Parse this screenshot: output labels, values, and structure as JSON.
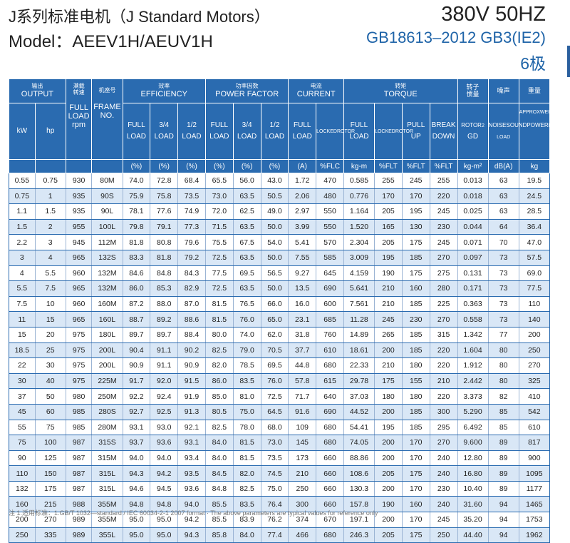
{
  "header": {
    "title_line1": "J系列标准电机（J Standard Motors）",
    "title_line2": "Model：AEEV1H/AEUV1H",
    "voltage": "380V  50HZ",
    "standard": "GB18613–2012 GB3(IE2)",
    "poles": "6极"
  },
  "table": {
    "groups": {
      "output": {
        "zh": "输出",
        "en": "OUTPUT"
      },
      "rated_speed": {
        "zh": "满载",
        "zh2": "转速"
      },
      "frame": {
        "zh": "机座号"
      },
      "efficiency": {
        "zh": "效率",
        "en": "EFFICIENCY"
      },
      "power_factor": {
        "zh": "功率因数",
        "en": "POWER FACTOR"
      },
      "current": {
        "zh": "电流",
        "en": "CURRENT"
      },
      "torque": {
        "zh": "转矩",
        "en": "TORQUE"
      },
      "inertia": {
        "zh": "转子",
        "zh2": "惯量"
      },
      "noise": {
        "zh": "噪声"
      },
      "weight": {
        "zh": "重量"
      }
    },
    "sub": {
      "kw": "kW",
      "hp": "hp",
      "full_load_rpm": [
        "FULL",
        "LOAD",
        "rpm"
      ],
      "frame_no": [
        "FRAME",
        "NO."
      ],
      "eff": [
        [
          "FULL",
          "LOAD"
        ],
        [
          "3/4",
          "LOAD"
        ],
        [
          "1/2",
          "LOAD"
        ]
      ],
      "pf": [
        [
          "FULL",
          "LOAD"
        ],
        [
          "3/4",
          "LOAD"
        ],
        [
          "1/2",
          "LOAD"
        ]
      ],
      "cur_full": [
        "FULL",
        "LOAD"
      ],
      "cur_locked": [
        "LOCKED",
        "ROTOR"
      ],
      "tq_full": [
        "FULL",
        "LOAD"
      ],
      "tq_locked": [
        "LOCKED",
        "ROTOR"
      ],
      "tq_pull": [
        "PULL",
        "UP"
      ],
      "tq_break": [
        "BREAK",
        "DOWN"
      ],
      "inertia": [
        "ROTOR",
        "2",
        "GD"
      ],
      "noise": [
        "NOISE",
        "SOUND",
        "POWER",
        "NO-LOAD"
      ],
      "weight": [
        "APPROX",
        "WEIGHT"
      ]
    },
    "units": [
      "",
      "",
      "",
      "",
      "(%)",
      "(%)",
      "(%)",
      "(%)",
      "(%)",
      "(%)",
      "(A)",
      "%FLC",
      "kg-m",
      "%FLT",
      "%FLT",
      "%FLT",
      "kg-m²",
      "dB(A)",
      "kg"
    ],
    "rows": [
      [
        "0.55",
        "0.75",
        "930",
        "80M",
        "74.0",
        "72.8",
        "68.4",
        "65.5",
        "56.0",
        "43.0",
        "1.72",
        "470",
        "0.585",
        "255",
        "245",
        "255",
        "0.013",
        "63",
        "19.5"
      ],
      [
        "0.75",
        "1",
        "935",
        "90S",
        "75.9",
        "75.8",
        "73.5",
        "73.0",
        "63.5",
        "50.5",
        "2.06",
        "480",
        "0.776",
        "170",
        "170",
        "220",
        "0.018",
        "63",
        "24.5"
      ],
      [
        "1.1",
        "1.5",
        "935",
        "90L",
        "78.1",
        "77.6",
        "74.9",
        "72.0",
        "62.5",
        "49.0",
        "2.97",
        "550",
        "1.164",
        "205",
        "195",
        "245",
        "0.025",
        "63",
        "28.5"
      ],
      [
        "1.5",
        "2",
        "955",
        "100L",
        "79.8",
        "79.1",
        "77.3",
        "71.5",
        "63.5",
        "50.0",
        "3.99",
        "550",
        "1.520",
        "165",
        "130",
        "230",
        "0.044",
        "64",
        "36.4"
      ],
      [
        "2.2",
        "3",
        "945",
        "112M",
        "81.8",
        "80.8",
        "79.6",
        "75.5",
        "67.5",
        "54.0",
        "5.41",
        "570",
        "2.304",
        "205",
        "175",
        "245",
        "0.071",
        "70",
        "47.0"
      ],
      [
        "3",
        "4",
        "965",
        "132S",
        "83.3",
        "81.8",
        "79.2",
        "72.5",
        "63.5",
        "50.0",
        "7.55",
        "585",
        "3.009",
        "195",
        "185",
        "270",
        "0.097",
        "73",
        "57.5"
      ],
      [
        "4",
        "5.5",
        "960",
        "132M",
        "84.6",
        "84.8",
        "84.3",
        "77.5",
        "69.5",
        "56.5",
        "9.27",
        "645",
        "4.159",
        "190",
        "175",
        "275",
        "0.131",
        "73",
        "69.0"
      ],
      [
        "5.5",
        "7.5",
        "965",
        "132M",
        "86.0",
        "85.3",
        "82.9",
        "72.5",
        "63.5",
        "50.0",
        "13.5",
        "690",
        "5.641",
        "210",
        "160",
        "280",
        "0.171",
        "73",
        "77.5"
      ],
      [
        "7.5",
        "10",
        "960",
        "160M",
        "87.2",
        "88.0",
        "87.0",
        "81.5",
        "76.5",
        "66.0",
        "16.0",
        "600",
        "7.561",
        "210",
        "185",
        "225",
        "0.363",
        "73",
        "110"
      ],
      [
        "11",
        "15",
        "965",
        "160L",
        "88.7",
        "89.2",
        "88.6",
        "81.5",
        "76.0",
        "65.0",
        "23.1",
        "685",
        "11.28",
        "245",
        "230",
        "270",
        "0.558",
        "73",
        "140"
      ],
      [
        "15",
        "20",
        "975",
        "180L",
        "89.7",
        "89.7",
        "88.4",
        "80.0",
        "74.0",
        "62.0",
        "31.8",
        "760",
        "14.89",
        "265",
        "185",
        "315",
        "1.342",
        "77",
        "200"
      ],
      [
        "18.5",
        "25",
        "975",
        "200L",
        "90.4",
        "91.1",
        "90.2",
        "82.5",
        "79.0",
        "70.5",
        "37.7",
        "610",
        "18.61",
        "200",
        "185",
        "220",
        "1.604",
        "80",
        "250"
      ],
      [
        "22",
        "30",
        "975",
        "200L",
        "90.9",
        "91.1",
        "90.9",
        "82.0",
        "78.5",
        "69.5",
        "44.8",
        "680",
        "22.33",
        "210",
        "180",
        "220",
        "1.912",
        "80",
        "270"
      ],
      [
        "30",
        "40",
        "975",
        "225M",
        "91.7",
        "92.0",
        "91.5",
        "86.0",
        "83.5",
        "76.0",
        "57.8",
        "615",
        "29.78",
        "175",
        "155",
        "210",
        "2.442",
        "80",
        "325"
      ],
      [
        "37",
        "50",
        "980",
        "250M",
        "92.2",
        "92.4",
        "91.9",
        "85.0",
        "81.0",
        "72.5",
        "71.7",
        "640",
        "37.03",
        "180",
        "180",
        "220",
        "3.373",
        "82",
        "410"
      ],
      [
        "45",
        "60",
        "985",
        "280S",
        "92.7",
        "92.5",
        "91.3",
        "80.5",
        "75.0",
        "64.5",
        "91.6",
        "690",
        "44.52",
        "200",
        "185",
        "300",
        "5.290",
        "85",
        "542"
      ],
      [
        "55",
        "75",
        "985",
        "280M",
        "93.1",
        "93.0",
        "92.1",
        "82.5",
        "78.0",
        "68.0",
        "109",
        "680",
        "54.41",
        "195",
        "185",
        "295",
        "6.492",
        "85",
        "610"
      ],
      [
        "75",
        "100",
        "987",
        "315S",
        "93.7",
        "93.6",
        "93.1",
        "84.0",
        "81.5",
        "73.0",
        "145",
        "680",
        "74.05",
        "200",
        "170",
        "270",
        "9.600",
        "89",
        "817"
      ],
      [
        "90",
        "125",
        "987",
        "315M",
        "94.0",
        "94.0",
        "93.4",
        "84.0",
        "81.5",
        "73.5",
        "173",
        "660",
        "88.86",
        "200",
        "170",
        "240",
        "12.80",
        "89",
        "900"
      ],
      [
        "110",
        "150",
        "987",
        "315L",
        "94.3",
        "94.2",
        "93.5",
        "84.5",
        "82.0",
        "74.5",
        "210",
        "660",
        "108.6",
        "205",
        "175",
        "240",
        "16.80",
        "89",
        "1095"
      ],
      [
        "132",
        "175",
        "987",
        "315L",
        "94.6",
        "94.5",
        "93.6",
        "84.8",
        "82.5",
        "75.0",
        "250",
        "660",
        "130.3",
        "200",
        "170",
        "230",
        "10.40",
        "89",
        "1177"
      ],
      [
        "160",
        "215",
        "988",
        "355M",
        "94.8",
        "94.8",
        "94.0",
        "85.5",
        "83.5",
        "76.4",
        "300",
        "660",
        "157.8",
        "190",
        "160",
        "240",
        "31.60",
        "94",
        "1465"
      ],
      [
        "200",
        "270",
        "989",
        "355M",
        "95.0",
        "95.0",
        "94.2",
        "85.5",
        "83.9",
        "76.2",
        "374",
        "670",
        "197.1",
        "200",
        "170",
        "245",
        "35.20",
        "94",
        "1753"
      ],
      [
        "250",
        "335",
        "989",
        "355L",
        "95.0",
        "95.0",
        "94.3",
        "85.8",
        "84.0",
        "77.4",
        "466",
        "680",
        "246.3",
        "205",
        "175",
        "250",
        "44.40",
        "94",
        "1962"
      ]
    ]
  },
  "footnote": "注 1.适用标准：1.GB/T 1032—standard  /  IEC 60034-2-1 2007 format  ·  The above parameters are typical values for reference only"
}
